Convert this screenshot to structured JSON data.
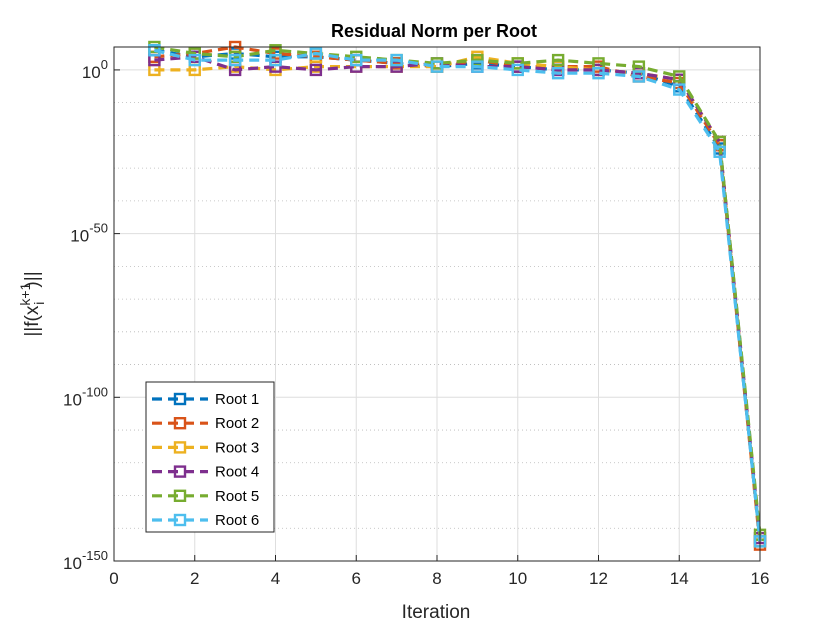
{
  "chart_data": {
    "type": "line",
    "title": "Residual Norm per Root",
    "xlabel": "Iteration",
    "ylabel": {
      "base": "||f(x",
      "sub": "i",
      "sup": "k+1",
      "tail": ")||"
    },
    "xlim": [
      0,
      16
    ],
    "ylim_exponent": [
      -150,
      7
    ],
    "y_scale": "log",
    "x_ticks": [
      0,
      2,
      4,
      6,
      8,
      10,
      12,
      14,
      16
    ],
    "y_ticks": [
      {
        "exp": 0,
        "base": "10",
        "sup": "0"
      },
      {
        "exp": -50,
        "base": "10",
        "sup": "-50"
      },
      {
        "exp": -100,
        "base": "10",
        "sup": "-100"
      },
      {
        "exp": -150,
        "base": "10",
        "sup": "-150"
      }
    ],
    "grid": true,
    "minor_grid": true,
    "legend_position": "bottom-left",
    "marker": "square",
    "line_style": "dashed",
    "x": [
      1,
      2,
      3,
      4,
      5,
      6,
      7,
      8,
      9,
      10,
      11,
      12,
      13,
      14,
      15,
      16
    ],
    "series": [
      {
        "name": "Root 1",
        "color": "#0072BD",
        "log10_values": [
          6,
          4,
          5,
          4,
          4,
          3,
          2,
          1,
          2,
          1,
          0,
          0,
          -1,
          -5,
          -24,
          -144
        ]
      },
      {
        "name": "Root 2",
        "color": "#D95319",
        "log10_values": [
          4,
          5,
          7,
          5,
          4,
          3,
          2,
          1,
          3,
          1,
          1,
          1,
          -2,
          -4,
          -23,
          -145
        ]
      },
      {
        "name": "Root 3",
        "color": "#EDB120",
        "log10_values": [
          0,
          0,
          1,
          0,
          1,
          1,
          1,
          1,
          4,
          2,
          1,
          0,
          -1,
          -3,
          -22,
          -144
        ]
      },
      {
        "name": "Root 4",
        "color": "#7E2F8E",
        "log10_values": [
          3,
          4,
          0,
          1,
          0,
          1,
          1,
          2,
          1,
          1,
          0,
          0,
          -1,
          -3,
          -22,
          -143
        ]
      },
      {
        "name": "Root 5",
        "color": "#77AC30",
        "log10_values": [
          7,
          5,
          4,
          6,
          5,
          4,
          3,
          2,
          3,
          2,
          3,
          2,
          1,
          -2,
          -22,
          -142
        ]
      },
      {
        "name": "Root 6",
        "color": "#4DBEEE",
        "log10_values": [
          6,
          3,
          3,
          3,
          5,
          3,
          3,
          1,
          1,
          0,
          -1,
          -1,
          -2,
          -6,
          -25,
          -144
        ]
      }
    ]
  }
}
